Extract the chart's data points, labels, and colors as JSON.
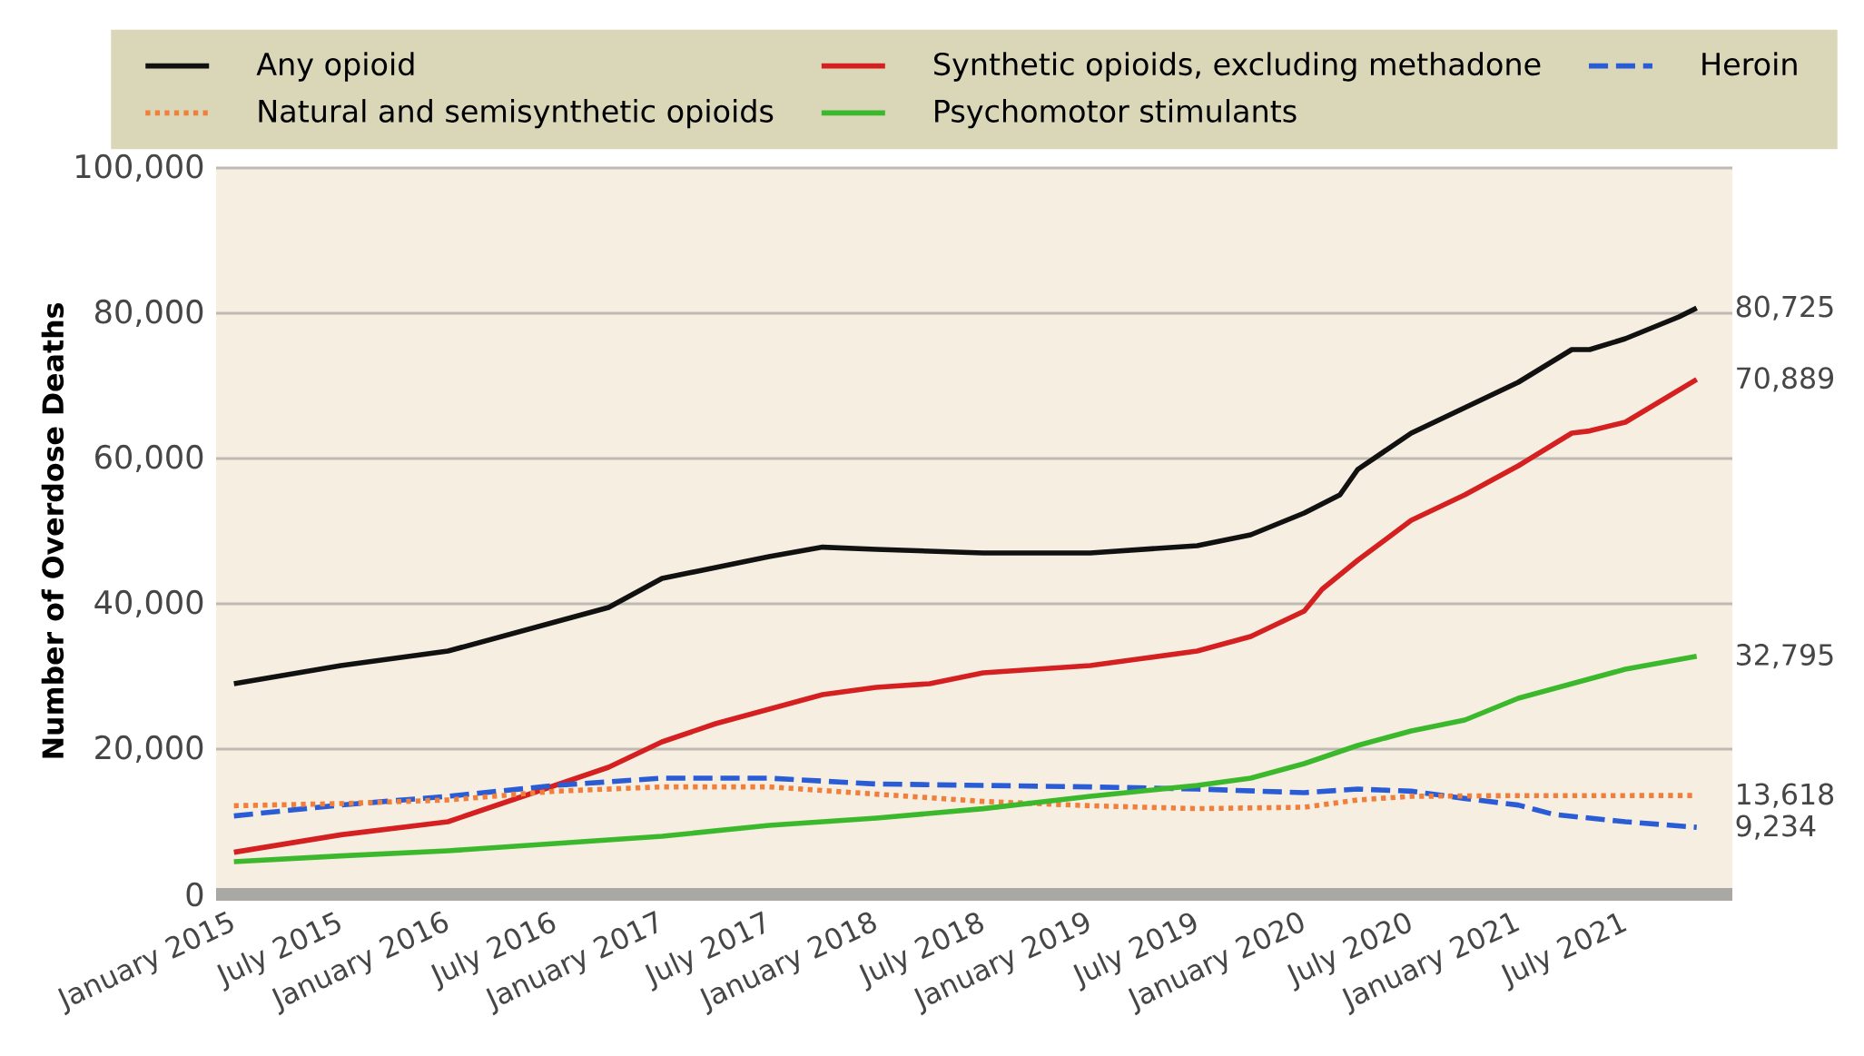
{
  "chart_data": {
    "type": "line",
    "ylabel": "Number of Overdose Deaths",
    "legend": "top",
    "grid": "y",
    "xlim": [
      "2014-12",
      "2022-01"
    ],
    "ylim": [
      0,
      100000
    ],
    "yticks": [
      {
        "value": 0,
        "label": "0"
      },
      {
        "value": 20000,
        "label": "20,000"
      },
      {
        "value": 40000,
        "label": "40,000"
      },
      {
        "value": 60000,
        "label": "60,000"
      },
      {
        "value": 80000,
        "label": "80,000"
      },
      {
        "value": 100000,
        "label": "100,000"
      }
    ],
    "xticks": [
      {
        "value": "2015-01",
        "label": "January 2015"
      },
      {
        "value": "2015-07",
        "label": "July 2015"
      },
      {
        "value": "2016-01",
        "label": "January 2016"
      },
      {
        "value": "2016-07",
        "label": "July 2016"
      },
      {
        "value": "2017-01",
        "label": "January 2017"
      },
      {
        "value": "2017-07",
        "label": "July 2017"
      },
      {
        "value": "2018-01",
        "label": "January 2018"
      },
      {
        "value": "2018-07",
        "label": "July 2018"
      },
      {
        "value": "2019-01",
        "label": "January 2019"
      },
      {
        "value": "2019-07",
        "label": "July 2019"
      },
      {
        "value": "2020-01",
        "label": "January 2020"
      },
      {
        "value": "2020-07",
        "label": "July 2020"
      },
      {
        "value": "2021-01",
        "label": "January 2021"
      },
      {
        "value": "2021-07",
        "label": "July 2021"
      }
    ],
    "series": [
      {
        "name": "Any opioid",
        "color": "#111111",
        "line_style": "solid",
        "x": [
          "2015-01",
          "2015-07",
          "2016-01",
          "2016-07",
          "2016-10",
          "2017-01",
          "2017-07",
          "2017-10",
          "2018-01",
          "2018-07",
          "2019-01",
          "2019-07",
          "2019-10",
          "2020-01",
          "2020-03",
          "2020-04",
          "2020-07",
          "2020-10",
          "2021-01",
          "2021-04",
          "2021-05",
          "2021-07",
          "2021-10",
          "2021-11"
        ],
        "values": [
          29000,
          31500,
          33500,
          37500,
          39500,
          43500,
          46500,
          47800,
          47500,
          47000,
          47000,
          48000,
          49500,
          52500,
          55000,
          58500,
          63500,
          67000,
          70500,
          75000,
          75000,
          76500,
          79500,
          80725
        ]
      },
      {
        "name": "Synthetic opioids, excluding methadone",
        "color": "#d42020",
        "line_style": "solid",
        "x": [
          "2015-01",
          "2015-07",
          "2016-01",
          "2016-04",
          "2016-07",
          "2016-10",
          "2017-01",
          "2017-04",
          "2017-07",
          "2017-10",
          "2018-01",
          "2018-04",
          "2018-07",
          "2018-10",
          "2019-01",
          "2019-04",
          "2019-07",
          "2019-10",
          "2020-01",
          "2020-02",
          "2020-04",
          "2020-07",
          "2020-10",
          "2021-01",
          "2021-04",
          "2021-05",
          "2021-07",
          "2021-11"
        ],
        "values": [
          5800,
          8200,
          10000,
          12500,
          15000,
          17500,
          21000,
          23500,
          25500,
          27500,
          28500,
          29000,
          30500,
          31000,
          31500,
          32500,
          33500,
          35500,
          39000,
          42000,
          46000,
          51500,
          55000,
          59000,
          63500,
          63800,
          65000,
          70889
        ]
      },
      {
        "name": "Heroin",
        "color": "#2a5cd6",
        "line_style": "dashed",
        "x": [
          "2015-01",
          "2015-07",
          "2016-01",
          "2016-07",
          "2017-01",
          "2017-07",
          "2018-01",
          "2018-07",
          "2019-01",
          "2019-07",
          "2020-01",
          "2020-04",
          "2020-07",
          "2020-10",
          "2021-01",
          "2021-03",
          "2021-07",
          "2021-11"
        ],
        "values": [
          10800,
          12300,
          13500,
          15000,
          16000,
          16000,
          15200,
          15000,
          14800,
          14500,
          14000,
          14500,
          14200,
          13200,
          12300,
          11000,
          10000,
          9234
        ]
      },
      {
        "name": "Natural and semisynthetic opioids",
        "color": "#f07f3c",
        "line_style": "dotted",
        "x": [
          "2015-01",
          "2015-07",
          "2016-01",
          "2016-07",
          "2017-01",
          "2017-07",
          "2018-01",
          "2018-07",
          "2019-01",
          "2019-07",
          "2020-01",
          "2020-04",
          "2020-07",
          "2021-01",
          "2021-07",
          "2021-11"
        ],
        "values": [
          12200,
          12500,
          13000,
          14200,
          14800,
          14800,
          13800,
          12800,
          12200,
          11800,
          12000,
          13000,
          13500,
          13600,
          13600,
          13618
        ]
      },
      {
        "name": "Psychomotor stimulants",
        "color": "#3cb82c",
        "line_style": "solid",
        "x": [
          "2015-01",
          "2015-07",
          "2016-01",
          "2016-07",
          "2017-01",
          "2017-07",
          "2018-01",
          "2018-07",
          "2019-01",
          "2019-07",
          "2019-10",
          "2020-01",
          "2020-04",
          "2020-07",
          "2020-10",
          "2021-01",
          "2021-04",
          "2021-07",
          "2021-11"
        ],
        "values": [
          4500,
          5300,
          6000,
          7000,
          8000,
          9500,
          10500,
          11800,
          13500,
          15000,
          16000,
          18000,
          20500,
          22500,
          24000,
          27000,
          29000,
          31000,
          32795
        ]
      }
    ],
    "annotations": [
      {
        "text": "80,725",
        "x": "2021-11",
        "y": 80725
      },
      {
        "text": "70,889",
        "x": "2021-11",
        "y": 70889
      },
      {
        "text": "32,795",
        "x": "2021-11",
        "y": 32795
      },
      {
        "text": "13,618",
        "x": "2021-11",
        "y": 13618
      },
      {
        "text": "9,234",
        "x": "2021-11",
        "y": 9234
      }
    ]
  }
}
